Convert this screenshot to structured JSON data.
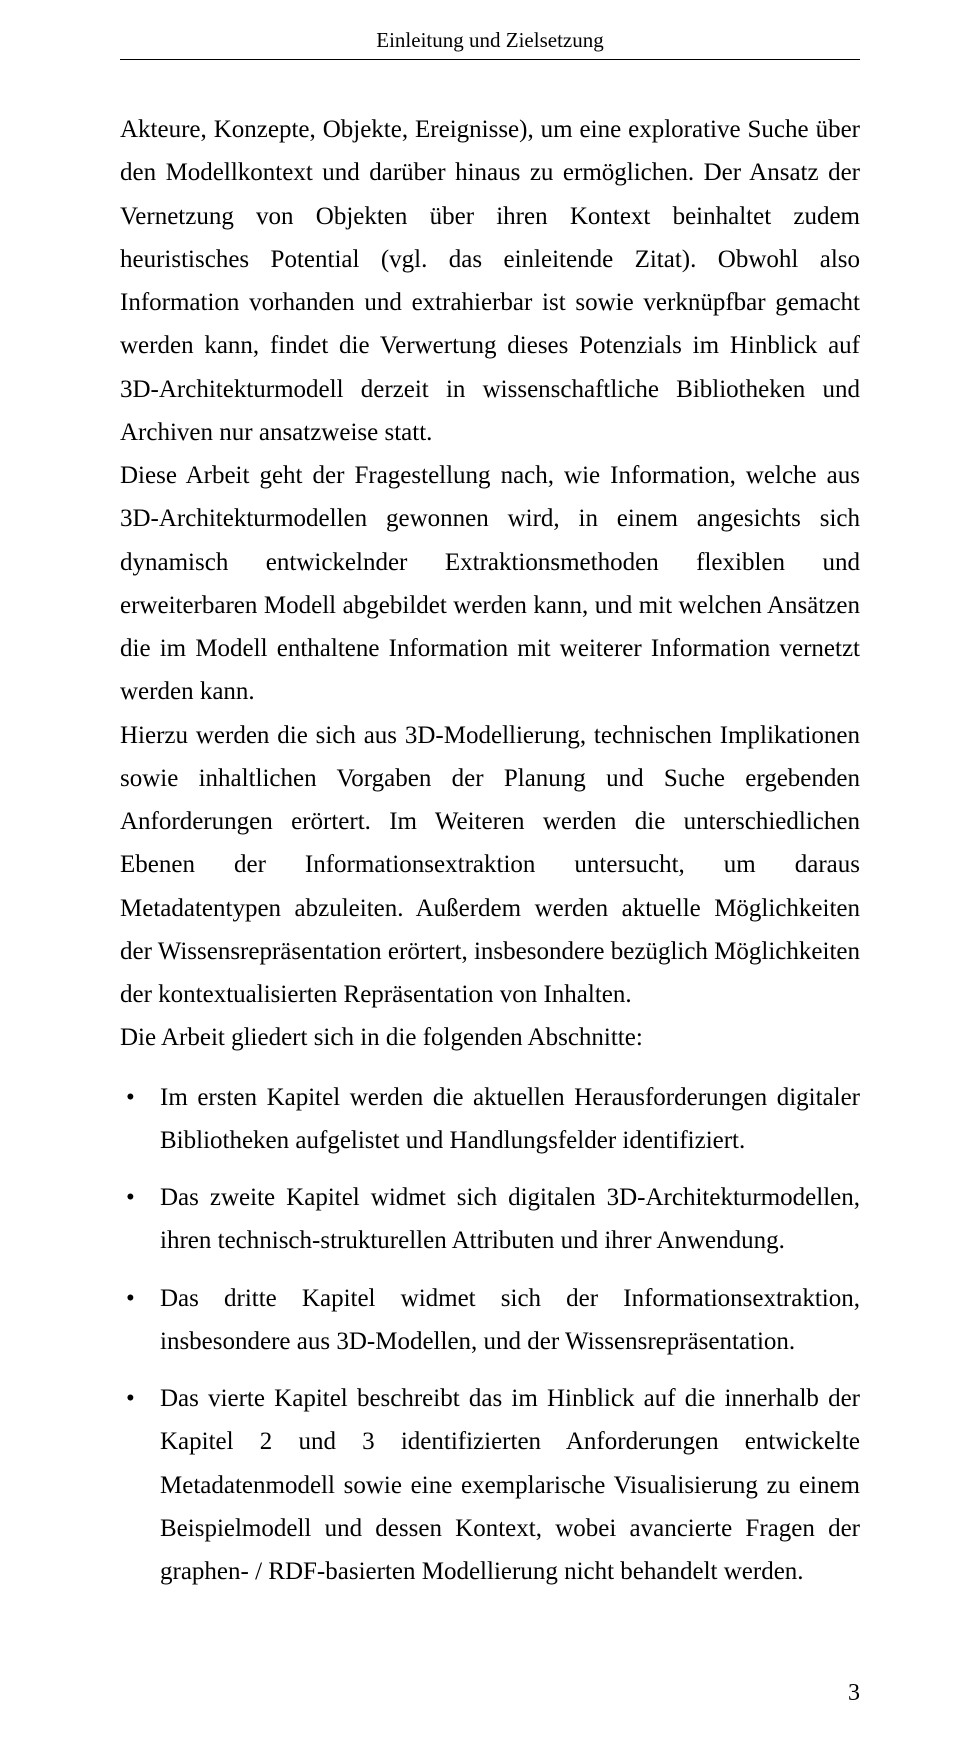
{
  "header": {
    "running_title": "Einleitung und Zielsetzung"
  },
  "body": {
    "p1": "Akteure, Konzepte, Objekte, Ereignisse), um eine explorative Suche über den Modellkontext und darüber hinaus zu ermöglichen. Der Ansatz der Vernetzung von Objekten über ihren Kontext beinhaltet zudem heuristisches Potential (vgl. das einleitende Zitat). Obwohl also Information vorhanden und extrahierbar ist sowie verknüpfbar gemacht werden kann, findet die Verwertung dieses Potenzials im Hinblick auf 3D-Architekturmodell derzeit in wissenschaftliche Bibliotheken und Archiven nur ansatzweise statt.",
    "p2": "Diese Arbeit geht der Fragestellung nach, wie Information, welche aus 3D-Architekturmodellen gewonnen wird, in einem angesichts sich dynamisch entwickelnder Extraktionsmethoden flexiblen und erweiterbaren Modell abgebildet werden kann, und mit welchen Ansätzen die im Modell enthaltene Information mit weiterer Information vernetzt werden kann.",
    "p3": "Hierzu werden die sich aus 3D-Modellierung, technischen Implikationen sowie inhaltlichen Vorgaben der Planung und Suche ergebenden Anforderungen erörtert. Im Weiteren werden die unterschiedlichen Ebenen der Informationsextraktion untersucht, um daraus Metadatentypen abzuleiten. Außerdem werden aktuelle Möglichkeiten der Wissensrepräsentation erörtert, insbesondere bezüglich Möglichkeiten der kontextualisierten Repräsentation von Inhalten.",
    "p4": "Die Arbeit gliedert sich in die folgenden Abschnitte:",
    "bullets": [
      "Im ersten Kapitel werden die aktuellen Herausforderungen digitaler Bibliotheken aufgelistet und Handlungsfelder identifiziert.",
      "Das zweite Kapitel widmet sich digitalen 3D-Architekturmodellen, ihren technisch-strukturellen Attributen und ihrer Anwendung.",
      "Das dritte Kapitel widmet sich der Informationsextraktion, insbesondere aus 3D-Modellen, und der Wissensrepräsentation.",
      "Das vierte Kapitel beschreibt das im Hinblick auf die innerhalb der Kapitel 2 und 3 identifizierten Anforderungen entwickelte Metadatenmodell sowie eine exemplarische Visualisierung zu einem Beispielmodell und dessen Kontext, wobei avancierte Fragen der graphen- / RDF-basierten Modellierung nicht behandelt werden."
    ]
  },
  "footer": {
    "page_number": "3"
  }
}
